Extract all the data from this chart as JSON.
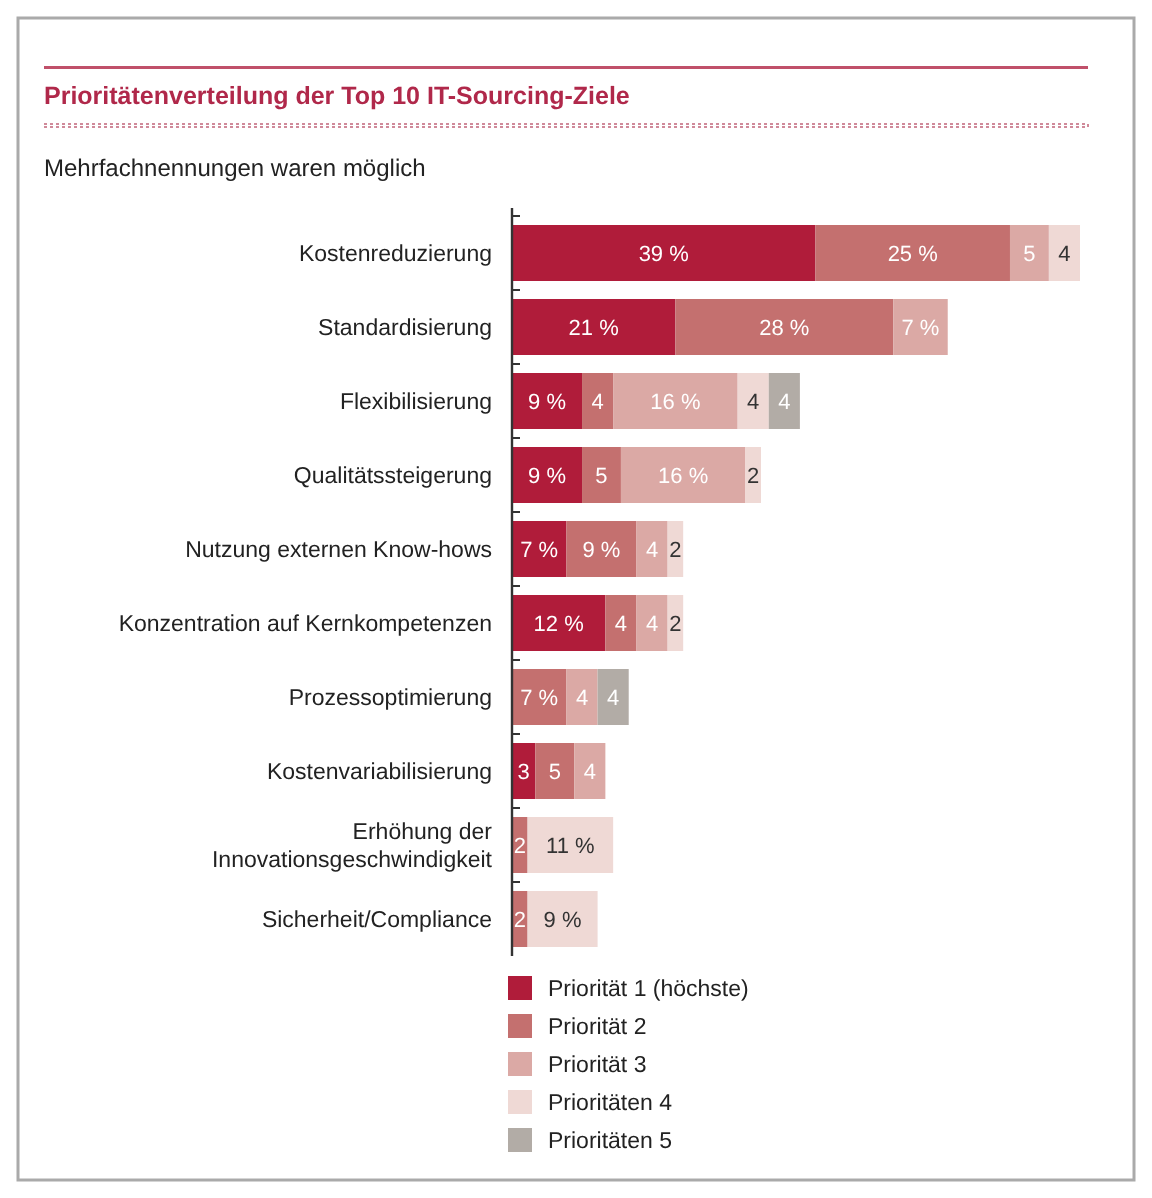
{
  "chart_data": {
    "type": "bar",
    "orientation": "horizontal",
    "stacked": true,
    "title": "Prioritätenverteilung der Top 10 IT-Sourcing-Ziele",
    "subtitle": "Mehrfachnennungen waren möglich",
    "categories": [
      "Kostenreduzierung",
      "Standardisierung",
      "Flexibilisierung",
      "Qualitätssteigerung",
      "Nutzung externen Know-hows",
      "Konzentration auf Kernkompetenzen",
      "Prozessoptimierung",
      "Kostenvariabilisierung",
      "Erhöhung der\nInnovationsgeschwindigkeit",
      "Sicherheit/Compliance"
    ],
    "series": [
      {
        "name": "Priorität 1 (höchste)",
        "color": "#b01c3a",
        "values": [
          39,
          21,
          9,
          9,
          7,
          12,
          null,
          3,
          null,
          null
        ],
        "value_labels": [
          "39 %",
          "21 %",
          "9 %",
          "9 %",
          "7 %",
          "12 %",
          null,
          "3",
          null,
          null
        ]
      },
      {
        "name": "Priorität 2",
        "color": "#c4706f",
        "values": [
          25,
          28,
          4,
          5,
          9,
          4,
          7,
          5,
          2,
          2
        ],
        "value_labels": [
          "25 %",
          "28 %",
          "4",
          "5",
          "9 %",
          "4",
          "7 %",
          "5",
          "2",
          "2"
        ]
      },
      {
        "name": "Priorität 3",
        "color": "#dba9a5",
        "values": [
          5,
          7,
          16,
          16,
          4,
          4,
          4,
          4,
          null,
          null
        ],
        "value_labels": [
          "5",
          "7 %",
          "16 %",
          "16 %",
          "4",
          "4",
          "4",
          "4",
          null,
          null
        ]
      },
      {
        "name": "Prioritäten 4",
        "color": "#efd9d5",
        "values": [
          4,
          null,
          4,
          2,
          2,
          2,
          null,
          null,
          11,
          9
        ],
        "value_labels": [
          "4",
          null,
          "4",
          "2",
          "2",
          "2",
          null,
          null,
          "11 %",
          "9 %"
        ]
      },
      {
        "name": "Prioritäten 5",
        "color": "#b2aca6",
        "values": [
          null,
          null,
          4,
          null,
          null,
          null,
          4,
          null,
          null,
          null
        ],
        "value_labels": [
          null,
          null,
          "4",
          null,
          null,
          null,
          "4",
          null,
          null,
          null
        ]
      }
    ],
    "legend": "bottom"
  }
}
